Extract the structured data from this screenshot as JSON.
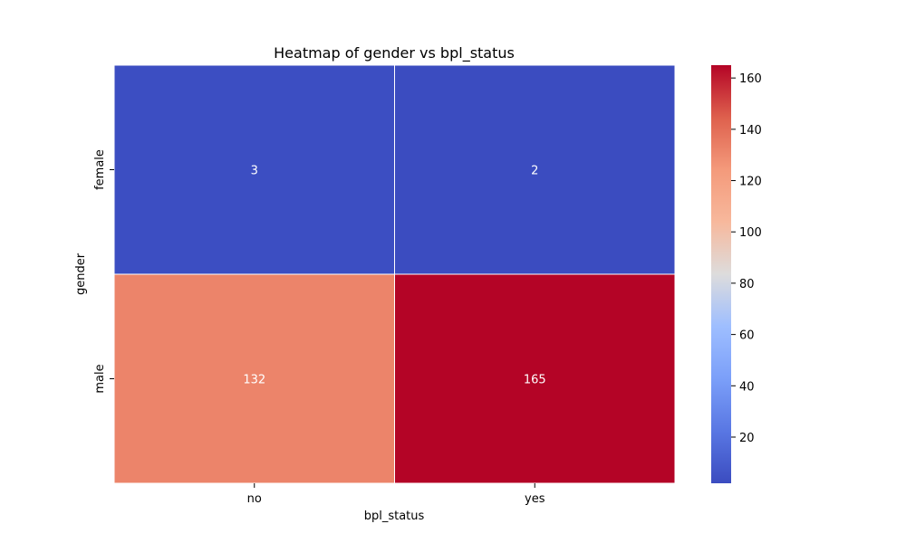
{
  "chart_data": {
    "type": "heatmap",
    "title": "Heatmap of gender vs bpl_status",
    "xlabel": "bpl_status",
    "ylabel": "gender",
    "x_categories": [
      "no",
      "yes"
    ],
    "y_categories": [
      "female",
      "male"
    ],
    "values": [
      [
        3,
        2
      ],
      [
        132,
        165
      ]
    ],
    "colormap": "coolwarm",
    "colorbar": {
      "min": 2,
      "max": 165,
      "ticks": [
        20,
        40,
        60,
        80,
        100,
        120,
        140,
        160
      ]
    },
    "cell_border_color": "#ffffff",
    "annotation_color": "#ffffff"
  }
}
